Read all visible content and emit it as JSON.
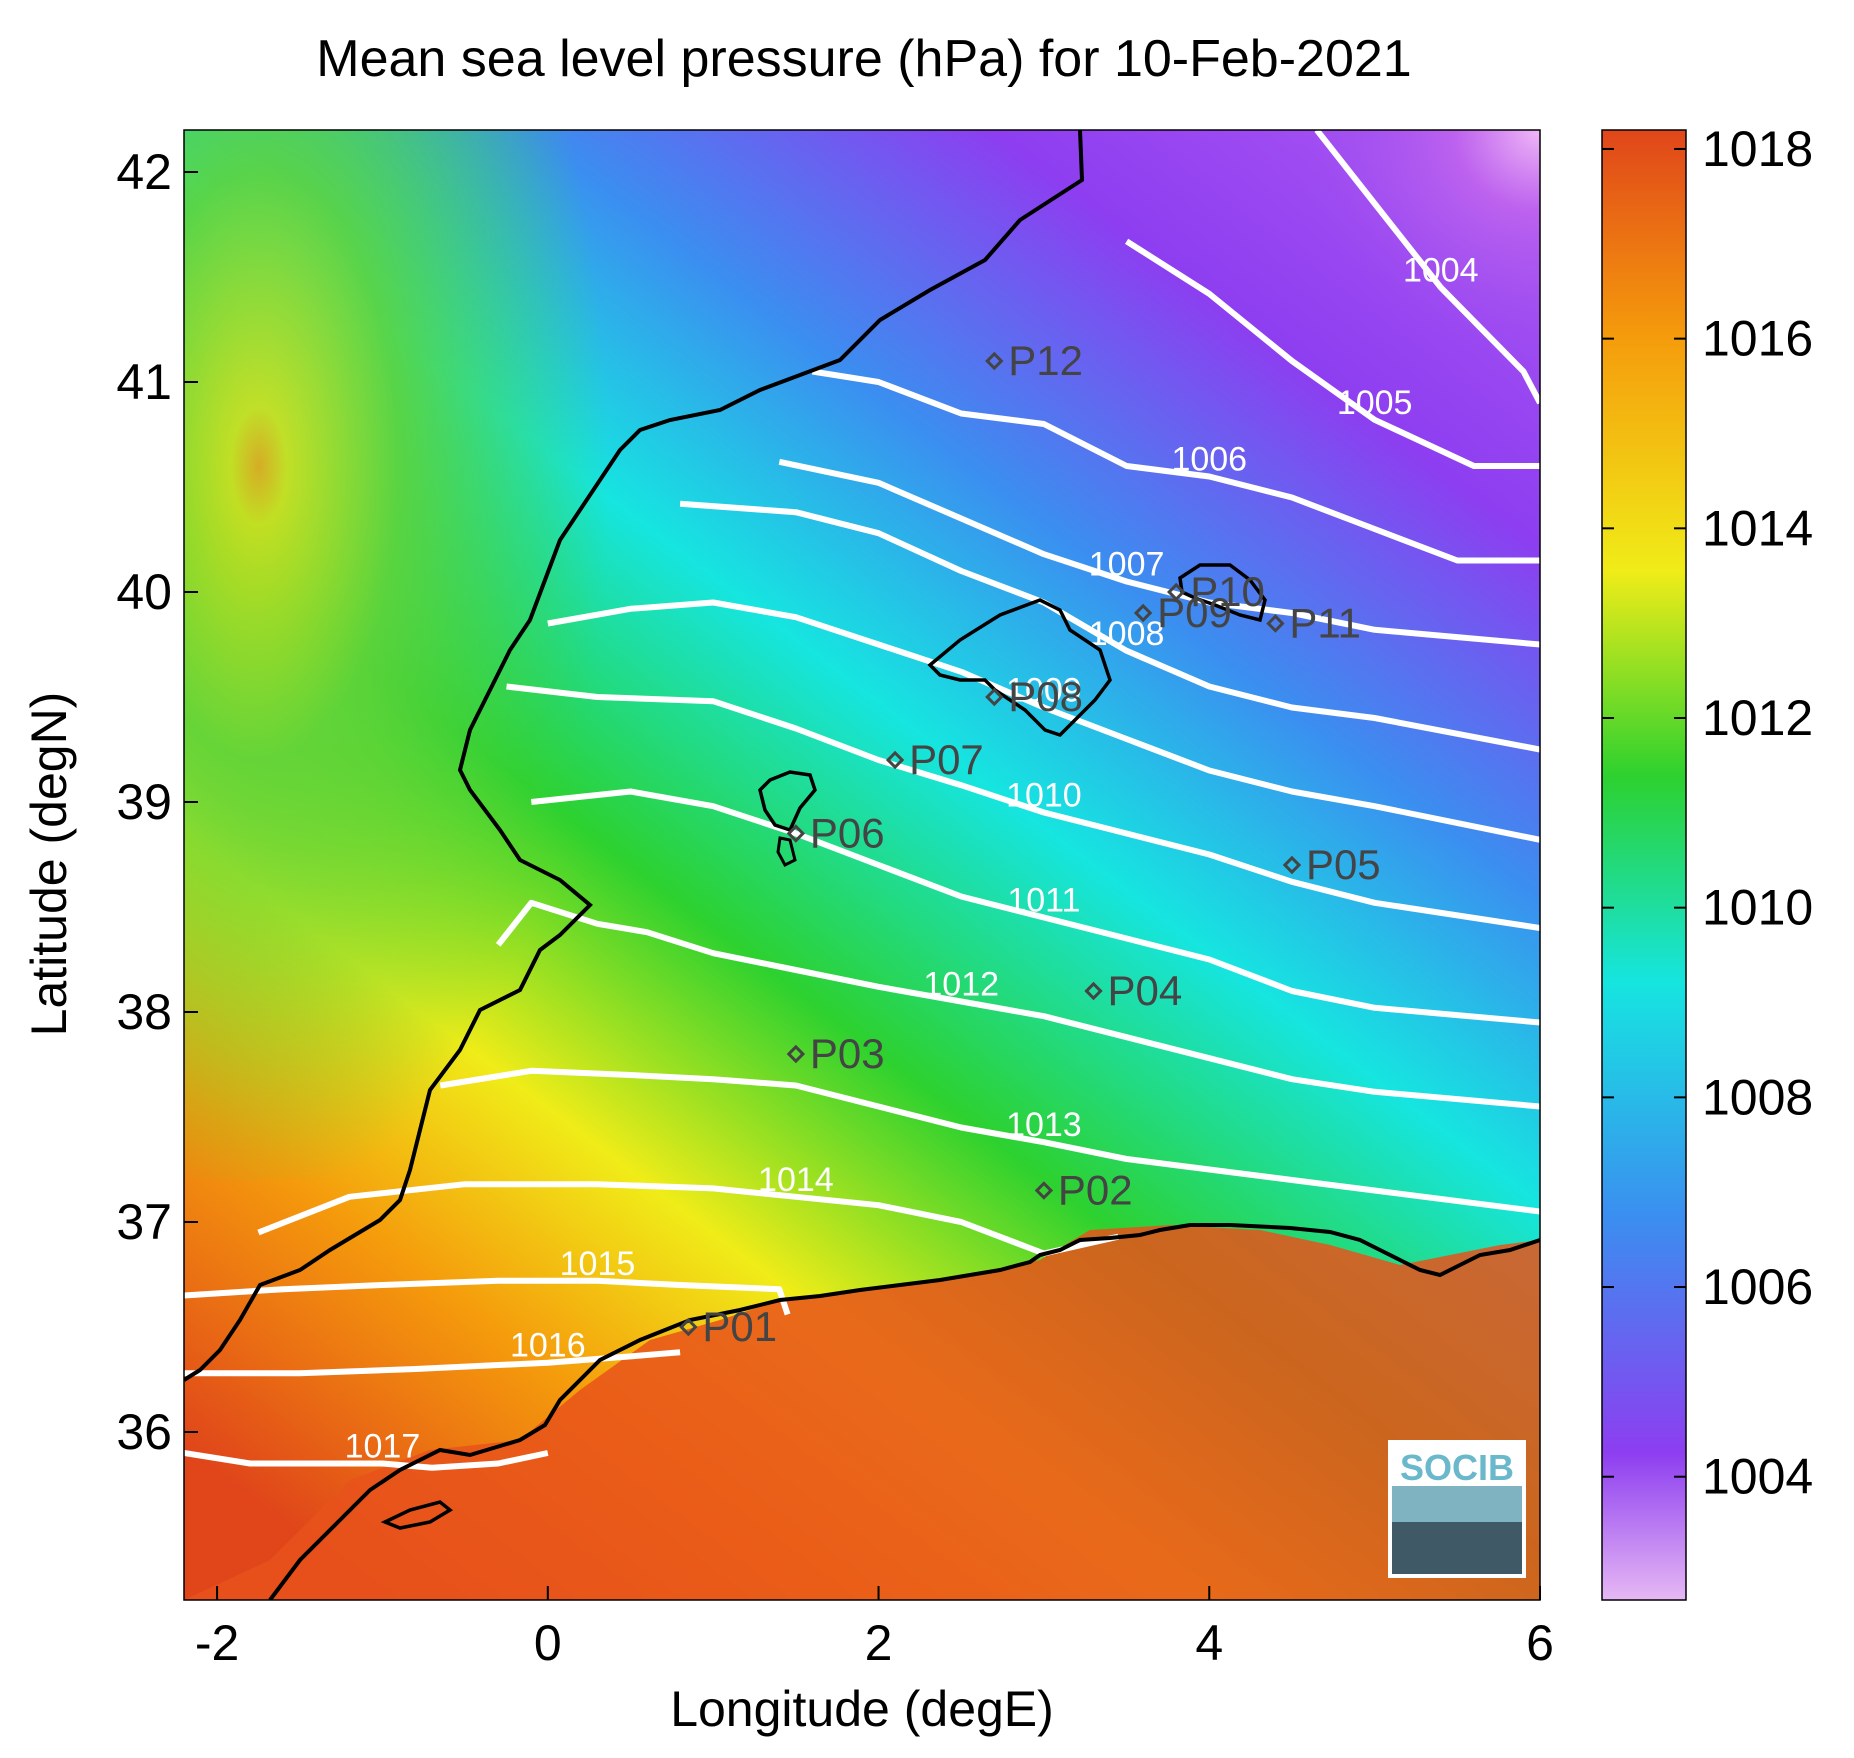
{
  "title": "Mean sea level pressure (hPa) for 10-Feb-2021",
  "xlabel": "Longitude (degE)",
  "ylabel": "Latitude (degN)",
  "x_ticks": [
    "-2",
    "0",
    "2",
    "4",
    "6"
  ],
  "y_ticks": [
    "36",
    "37",
    "38",
    "39",
    "40",
    "41",
    "42"
  ],
  "colorbar_ticks": [
    "1004",
    "1006",
    "1008",
    "1010",
    "1012",
    "1014",
    "1016",
    "1018"
  ],
  "logo_text": "SOCIB",
  "colors": {
    "high": "#e0461a",
    "orange": "#f59b0c",
    "yellow": "#f0ec18",
    "green": "#2dd12f",
    "cyan": "#16e5e0",
    "blue": "#3b8ef0",
    "violet": "#8d3ef0",
    "low": "#e6b8f4",
    "contour": "#ffffff",
    "coast": "#000000",
    "station": "#444444"
  },
  "chart_data": {
    "type": "heatmap",
    "title": "Mean sea level pressure (hPa) for 10-Feb-2021",
    "xlabel": "Longitude (degE)",
    "ylabel": "Latitude (degN)",
    "xlim": [
      -2.2,
      6
    ],
    "ylim": [
      35.2,
      42.2
    ],
    "colorbar": {
      "min": 1002.7,
      "max": 1018.2,
      "ticks": [
        1004,
        1006,
        1008,
        1010,
        1012,
        1014,
        1016,
        1018
      ]
    },
    "contour_interval": 1,
    "contours": [
      {
        "level": 1004,
        "label": "1004",
        "points": [
          [
            4.65,
            42.2
          ],
          [
            5.0,
            41.85
          ],
          [
            5.4,
            41.45
          ],
          [
            5.9,
            41.05
          ],
          [
            6.0,
            40.9
          ]
        ]
      },
      {
        "level": 1005,
        "label": "1005",
        "points": [
          [
            3.5,
            41.67
          ],
          [
            4.0,
            41.42
          ],
          [
            4.5,
            41.1
          ],
          [
            5.0,
            40.82
          ],
          [
            5.6,
            40.6
          ],
          [
            6.0,
            40.6
          ]
        ]
      },
      {
        "level": 1006,
        "label": "1006",
        "points": [
          [
            1.6,
            41.05
          ],
          [
            2.0,
            41.0
          ],
          [
            2.5,
            40.85
          ],
          [
            3.0,
            40.8
          ],
          [
            3.5,
            40.6
          ],
          [
            4.0,
            40.55
          ],
          [
            4.5,
            40.45
          ],
          [
            5.0,
            40.3
          ],
          [
            5.5,
            40.15
          ],
          [
            6.0,
            40.15
          ]
        ]
      },
      {
        "level": 1007,
        "label": "1007",
        "points": [
          [
            1.4,
            40.62
          ],
          [
            2.0,
            40.52
          ],
          [
            2.5,
            40.35
          ],
          [
            3.0,
            40.18
          ],
          [
            3.5,
            40.05
          ],
          [
            4.0,
            39.95
          ],
          [
            4.5,
            39.9
          ],
          [
            5.0,
            39.82
          ],
          [
            6.0,
            39.75
          ]
        ]
      },
      {
        "level": 1008,
        "label": "1008",
        "points": [
          [
            0.8,
            40.42
          ],
          [
            1.5,
            40.38
          ],
          [
            2.0,
            40.28
          ],
          [
            2.5,
            40.1
          ],
          [
            3.0,
            39.95
          ],
          [
            3.5,
            39.72
          ],
          [
            4.0,
            39.55
          ],
          [
            4.5,
            39.45
          ],
          [
            5.0,
            39.4
          ],
          [
            6.0,
            39.25
          ]
        ]
      },
      {
        "level": 1009,
        "label": "1009",
        "points": [
          [
            0.0,
            39.85
          ],
          [
            0.5,
            39.92
          ],
          [
            1.0,
            39.95
          ],
          [
            1.5,
            39.88
          ],
          [
            2.0,
            39.75
          ],
          [
            2.5,
            39.62
          ],
          [
            3.0,
            39.45
          ],
          [
            3.5,
            39.3
          ],
          [
            4.0,
            39.15
          ],
          [
            4.5,
            39.05
          ],
          [
            5.0,
            38.98
          ],
          [
            6.0,
            38.82
          ]
        ]
      },
      {
        "level": 1010,
        "label": "1010",
        "points": [
          [
            -0.25,
            39.55
          ],
          [
            0.3,
            39.5
          ],
          [
            1.0,
            39.48
          ],
          [
            1.5,
            39.35
          ],
          [
            2.0,
            39.2
          ],
          [
            2.5,
            39.08
          ],
          [
            3.0,
            38.95
          ],
          [
            3.5,
            38.85
          ],
          [
            4.0,
            38.75
          ],
          [
            4.5,
            38.62
          ],
          [
            5.0,
            38.52
          ],
          [
            6.0,
            38.4
          ]
        ]
      },
      {
        "level": 1011,
        "label": "1011",
        "points": [
          [
            -0.1,
            39.0
          ],
          [
            0.5,
            39.05
          ],
          [
            1.0,
            38.98
          ],
          [
            1.5,
            38.85
          ],
          [
            2.0,
            38.7
          ],
          [
            2.5,
            38.55
          ],
          [
            3.0,
            38.45
          ],
          [
            3.5,
            38.35
          ],
          [
            4.0,
            38.25
          ],
          [
            4.5,
            38.1
          ],
          [
            5.0,
            38.02
          ],
          [
            6.0,
            37.95
          ]
        ]
      },
      {
        "level": 1012,
        "label": "1012",
        "points": [
          [
            -0.3,
            38.32
          ],
          [
            -0.1,
            38.52
          ],
          [
            0.3,
            38.42
          ],
          [
            0.6,
            38.38
          ],
          [
            1.0,
            38.28
          ],
          [
            1.5,
            38.2
          ],
          [
            2.0,
            38.12
          ],
          [
            2.5,
            38.05
          ],
          [
            3.0,
            37.98
          ],
          [
            3.5,
            37.88
          ],
          [
            4.0,
            37.78
          ],
          [
            4.5,
            37.68
          ],
          [
            5.0,
            37.62
          ],
          [
            6.0,
            37.55
          ]
        ]
      },
      {
        "level": 1013,
        "label": "1013",
        "points": [
          [
            -0.65,
            37.65
          ],
          [
            -0.1,
            37.72
          ],
          [
            0.5,
            37.7
          ],
          [
            1.0,
            37.68
          ],
          [
            1.5,
            37.65
          ],
          [
            2.0,
            37.55
          ],
          [
            2.5,
            37.45
          ],
          [
            3.0,
            37.38
          ],
          [
            3.5,
            37.3
          ],
          [
            4.0,
            37.25
          ],
          [
            4.5,
            37.2
          ],
          [
            5.0,
            37.15
          ],
          [
            6.0,
            37.05
          ]
        ]
      },
      {
        "level": 1014,
        "label": "1014",
        "points": [
          [
            -1.75,
            36.95
          ],
          [
            -1.2,
            37.12
          ],
          [
            -0.5,
            37.18
          ],
          [
            0.3,
            37.18
          ],
          [
            1.0,
            37.16
          ],
          [
            1.5,
            37.12
          ],
          [
            2.0,
            37.08
          ],
          [
            2.5,
            37.0
          ],
          [
            3.0,
            36.85
          ],
          [
            3.45,
            36.93
          ]
        ]
      },
      {
        "level": 1015,
        "label": "1015",
        "points": [
          [
            -2.2,
            36.65
          ],
          [
            -1.6,
            36.68
          ],
          [
            -1.0,
            36.7
          ],
          [
            -0.3,
            36.72
          ],
          [
            0.3,
            36.72
          ],
          [
            0.8,
            36.7
          ],
          [
            1.4,
            36.68
          ],
          [
            1.45,
            36.56
          ]
        ]
      },
      {
        "level": 1016,
        "label": "1016",
        "points": [
          [
            -2.2,
            36.28
          ],
          [
            -1.5,
            36.28
          ],
          [
            -0.8,
            36.3
          ],
          [
            0.0,
            36.33
          ],
          [
            0.5,
            36.36
          ],
          [
            0.8,
            36.38
          ]
        ]
      },
      {
        "level": 1017,
        "label": "1017",
        "points": [
          [
            -2.2,
            35.9
          ],
          [
            -1.8,
            35.85
          ],
          [
            -1.4,
            35.85
          ],
          [
            -1.0,
            35.85
          ],
          [
            -0.7,
            35.83
          ],
          [
            -0.3,
            35.85
          ],
          [
            0.0,
            35.9
          ]
        ]
      }
    ],
    "stations": [
      {
        "name": "P01",
        "lon": 0.85,
        "lat": 36.5
      },
      {
        "name": "P02",
        "lon": 3.0,
        "lat": 37.15
      },
      {
        "name": "P03",
        "lon": 1.5,
        "lat": 37.8
      },
      {
        "name": "P04",
        "lon": 3.3,
        "lat": 38.1
      },
      {
        "name": "P05",
        "lon": 4.5,
        "lat": 38.7
      },
      {
        "name": "P06",
        "lon": 1.5,
        "lat": 38.85
      },
      {
        "name": "P07",
        "lon": 2.1,
        "lat": 39.2
      },
      {
        "name": "P08",
        "lon": 2.7,
        "lat": 39.5
      },
      {
        "name": "P09",
        "lon": 3.6,
        "lat": 39.9
      },
      {
        "name": "P10",
        "lon": 3.8,
        "lat": 40.0
      },
      {
        "name": "P11",
        "lon": 4.4,
        "lat": 39.85
      },
      {
        "name": "P12",
        "lon": 2.7,
        "lat": 41.1
      }
    ]
  }
}
